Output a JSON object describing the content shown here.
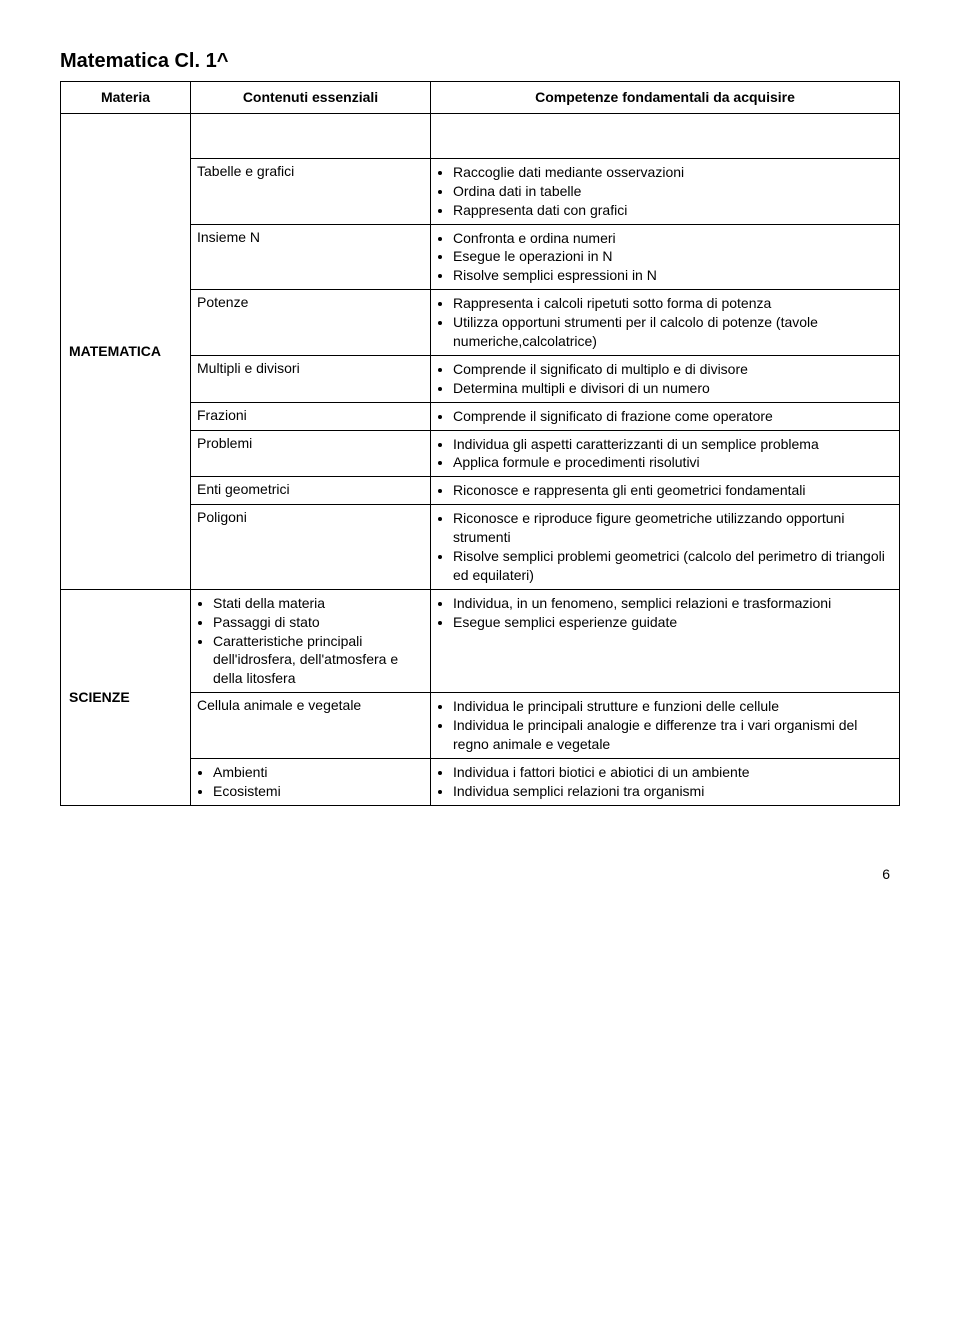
{
  "title": "Matematica  Cl. 1^",
  "header": {
    "col1": "Materia",
    "col2": "Contenuti essenziali",
    "col3": "Competenze fondamentali da acquisire"
  },
  "subjects": {
    "matematica": "MATEMATICA",
    "scienze": "SCIENZE"
  },
  "rows": {
    "r1": {
      "content": "Tabelle e grafici",
      "comp": [
        "Raccoglie dati mediante osservazioni",
        "Ordina dati in tabelle",
        "Rappresenta dati con grafici"
      ]
    },
    "r2": {
      "content": "Insieme N",
      "comp": [
        "Confronta e ordina numeri",
        "Esegue le operazioni in N",
        "Risolve semplici espressioni in N"
      ]
    },
    "r3": {
      "content": "Potenze",
      "comp": [
        "Rappresenta i calcoli ripetuti sotto forma di potenza",
        "Utilizza opportuni strumenti per il calcolo di potenze (tavole numeriche,calcolatrice)"
      ]
    },
    "r4": {
      "content": "Multipli e divisori",
      "comp": [
        "Comprende il significato di multiplo e di divisore",
        "Determina multipli e divisori di un numero"
      ]
    },
    "r5": {
      "content": "Frazioni",
      "comp": [
        "Comprende il significato di frazione come operatore"
      ]
    },
    "r6": {
      "content": "Problemi",
      "comp": [
        "Individua gli aspetti caratterizzanti di un semplice problema",
        "Applica formule e procedimenti risolutivi"
      ]
    },
    "r7": {
      "content": "Enti geometrici",
      "comp": [
        "Riconosce e rappresenta gli enti geometrici fondamentali"
      ]
    },
    "r8": {
      "content": "Poligoni",
      "comp": [
        "Riconosce e riproduce figure geometriche utilizzando opportuni strumenti",
        "Risolve semplici problemi geometrici (calcolo del perimetro di triangoli ed equilateri)"
      ]
    },
    "r9": {
      "content": [
        "Stati della materia",
        "Passaggi di stato",
        "Caratteristiche principali dell'idrosfera, dell'atmosfera e della litosfera"
      ],
      "comp": [
        "Individua, in un fenomeno, semplici relazioni e trasformazioni",
        "Esegue semplici esperienze guidate"
      ]
    },
    "r10": {
      "content": "Cellula animale e vegetale",
      "comp": [
        "Individua le principali strutture e funzioni delle cellule",
        "Individua le principali analogie e differenze tra i vari organismi del regno animale e vegetale"
      ]
    },
    "r11": {
      "content": [
        "Ambienti",
        "Ecosistemi"
      ],
      "comp": [
        "Individua i fattori biotici e abiotici di un ambiente",
        "Individua semplici relazioni tra organismi"
      ]
    }
  },
  "page_number": "6"
}
